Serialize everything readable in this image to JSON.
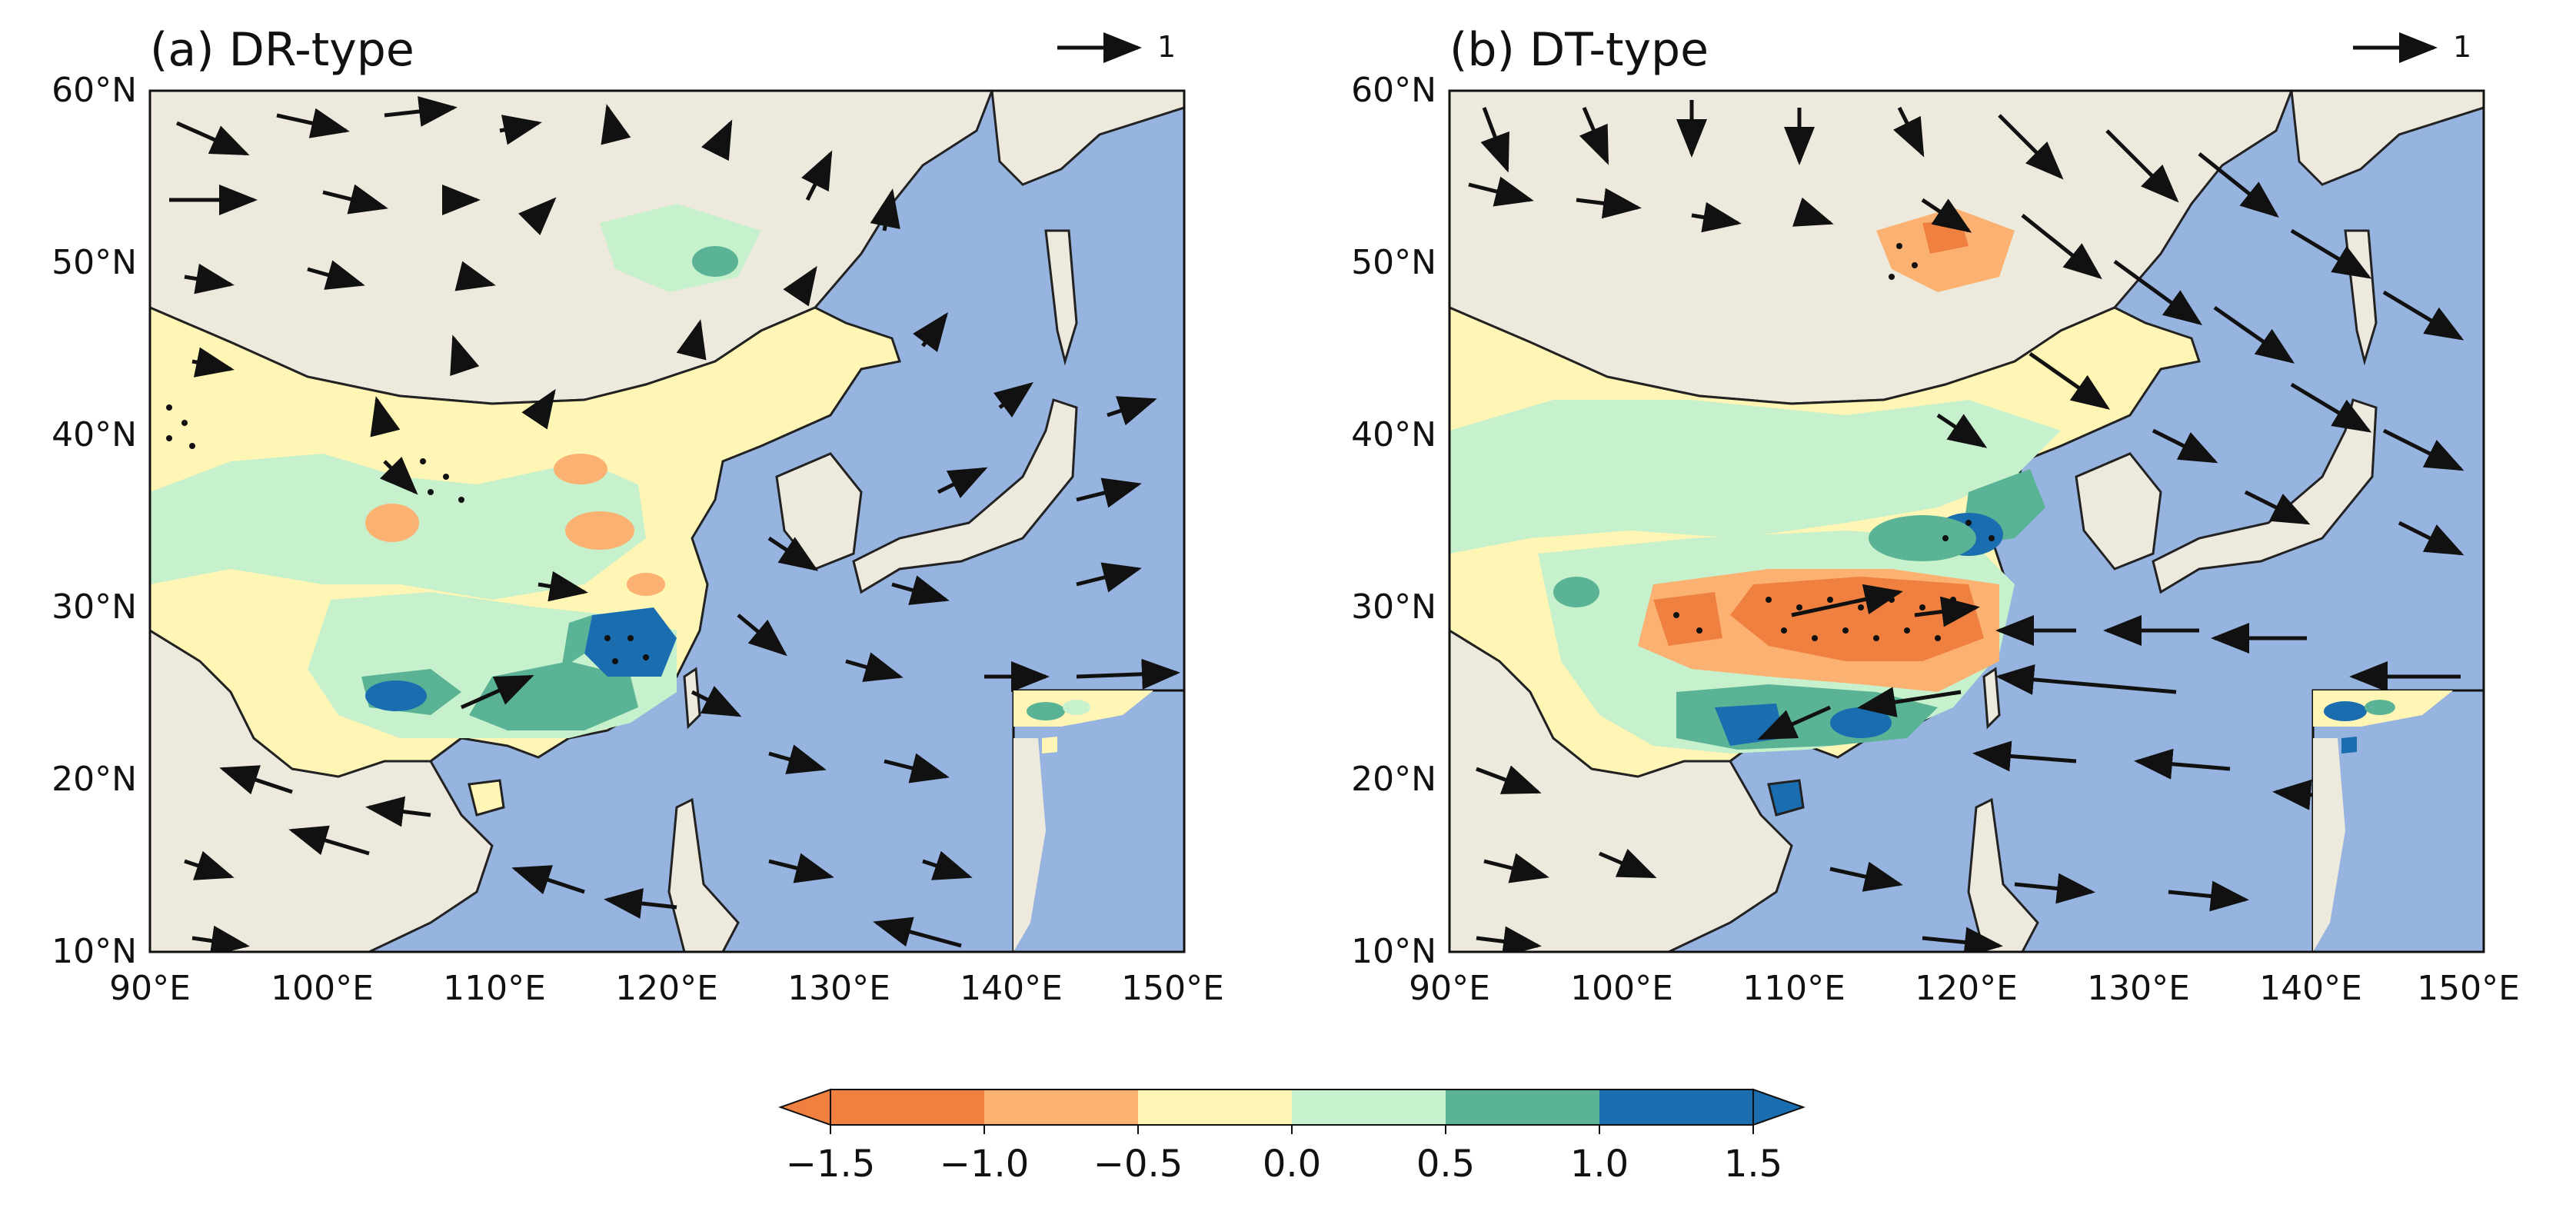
{
  "panels": [
    {
      "id": "a",
      "title": "(a) DR-type",
      "reference_vector_label": "1",
      "lon_labels": [
        "90°E",
        "100°E",
        "110°E",
        "120°E",
        "130°E",
        "140°E",
        "150°E"
      ],
      "lat_labels": [
        "60°N",
        "50°N",
        "40°N",
        "30°N",
        "20°N",
        "10°N"
      ]
    },
    {
      "id": "b",
      "title": "(b) DT-type",
      "reference_vector_label": "1",
      "lon_labels": [
        "90°E",
        "100°E",
        "110°E",
        "120°E",
        "130°E",
        "140°E",
        "150°E"
      ],
      "lat_labels": [
        "60°N",
        "50°N",
        "40°N",
        "30°N",
        "20°N",
        "10°N"
      ]
    }
  ],
  "colorbar": {
    "labels": [
      "−1.5",
      "−1.0",
      "−0.5",
      "0.0",
      "0.5",
      "1.0",
      "1.5"
    ],
    "bin_colors": [
      "#f08040",
      "#fbb171",
      "#fff5b5",
      "#c7f0cc",
      "#59b394",
      "#1a6daf"
    ],
    "extend": "both"
  },
  "colors": {
    "ocean": "#97b4e0",
    "land": "#ede9dc",
    "neutral_china": "#fff5b5"
  }
}
